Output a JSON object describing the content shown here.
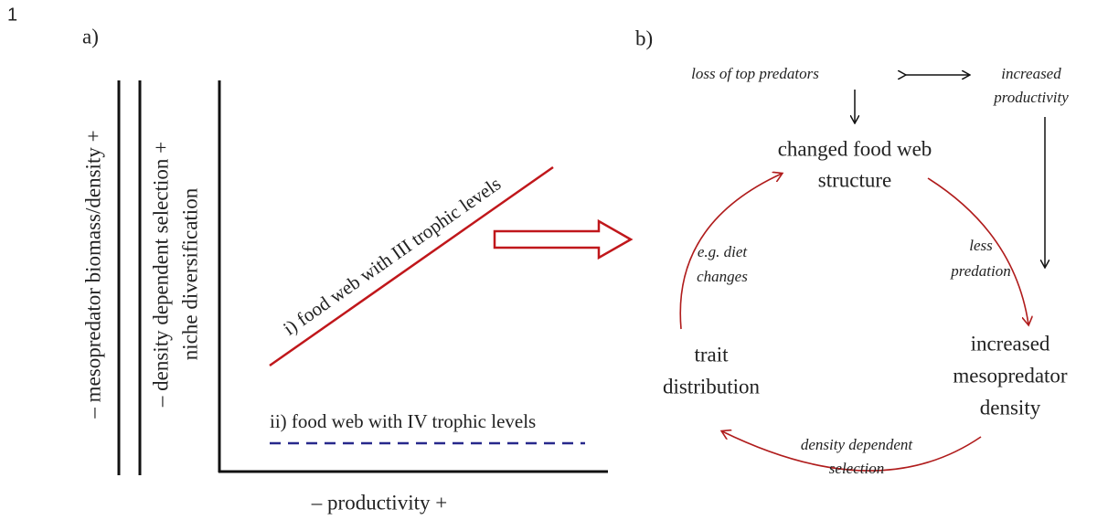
{
  "line_number": "1",
  "panel_a": {
    "label": "a)",
    "y_axis_outer": "– mesopredator biomass/density +",
    "y_axis_inner": [
      "– density dependent selection +",
      "niche diversification"
    ],
    "x_axis": "– productivity +",
    "line_i": "i) food web with III trophic levels",
    "line_ii": "ii) food web with IV trophic levels"
  },
  "panel_b": {
    "label": "b)",
    "drivers": {
      "loss": "loss of top predators",
      "productivity": [
        "increased",
        "productivity"
      ]
    },
    "nodes": {
      "food_web": [
        "changed food web",
        "structure"
      ],
      "density": [
        "increased",
        "mesopredator",
        "density"
      ],
      "trait": [
        "trait",
        "distribution"
      ]
    },
    "edges": {
      "predation": [
        "less",
        "predation"
      ],
      "selection": [
        "density dependent",
        "selection"
      ],
      "diet": [
        "e.g. diet",
        "changes"
      ]
    }
  }
}
